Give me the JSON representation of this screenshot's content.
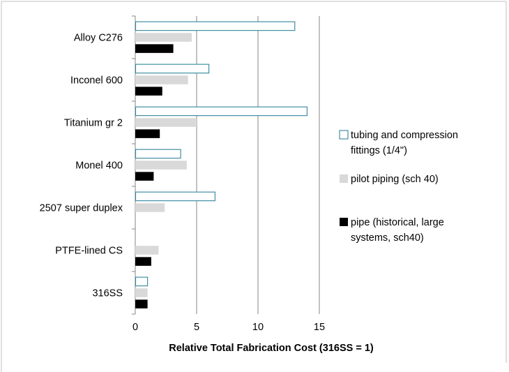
{
  "chart_data": {
    "type": "bar",
    "orientation": "horizontal",
    "categories": [
      "Alloy C276",
      "Inconel 600",
      "Titanium gr 2",
      "Monel 400",
      "2507 super duplex",
      "PTFE-lined CS",
      "316SS"
    ],
    "series": [
      {
        "name": "tubing and compression fittings (1/4\")",
        "values": [
          13.0,
          6.0,
          14.0,
          3.7,
          6.5,
          null,
          1.0
        ],
        "color": "#31859c",
        "style": "outline"
      },
      {
        "name": "pilot piping (sch 40)",
        "values": [
          4.6,
          4.3,
          5.0,
          4.2,
          2.4,
          1.9,
          1.0
        ],
        "color": "#d9d9d9",
        "style": "fill"
      },
      {
        "name": "pipe (historical, large systems, sch40)",
        "values": [
          3.1,
          2.2,
          2.0,
          1.5,
          null,
          1.3,
          1.0
        ],
        "color": "#000000",
        "style": "fill"
      }
    ],
    "xlabel": "Relative Total Fabrication Cost (316SS = 1)",
    "ylabel": "",
    "xlim": [
      0,
      15
    ],
    "xticks": [
      0,
      5,
      10,
      15
    ],
    "grid": "vertical",
    "legend_position": "right"
  },
  "legend": {
    "items": [
      {
        "line1": "tubing and compression",
        "line2": "fittings (1/4\")"
      },
      {
        "line1": "pilot piping (sch 40)",
        "line2": ""
      },
      {
        "line1": "pipe (historical, large",
        "line2": "systems, sch40)"
      }
    ]
  }
}
